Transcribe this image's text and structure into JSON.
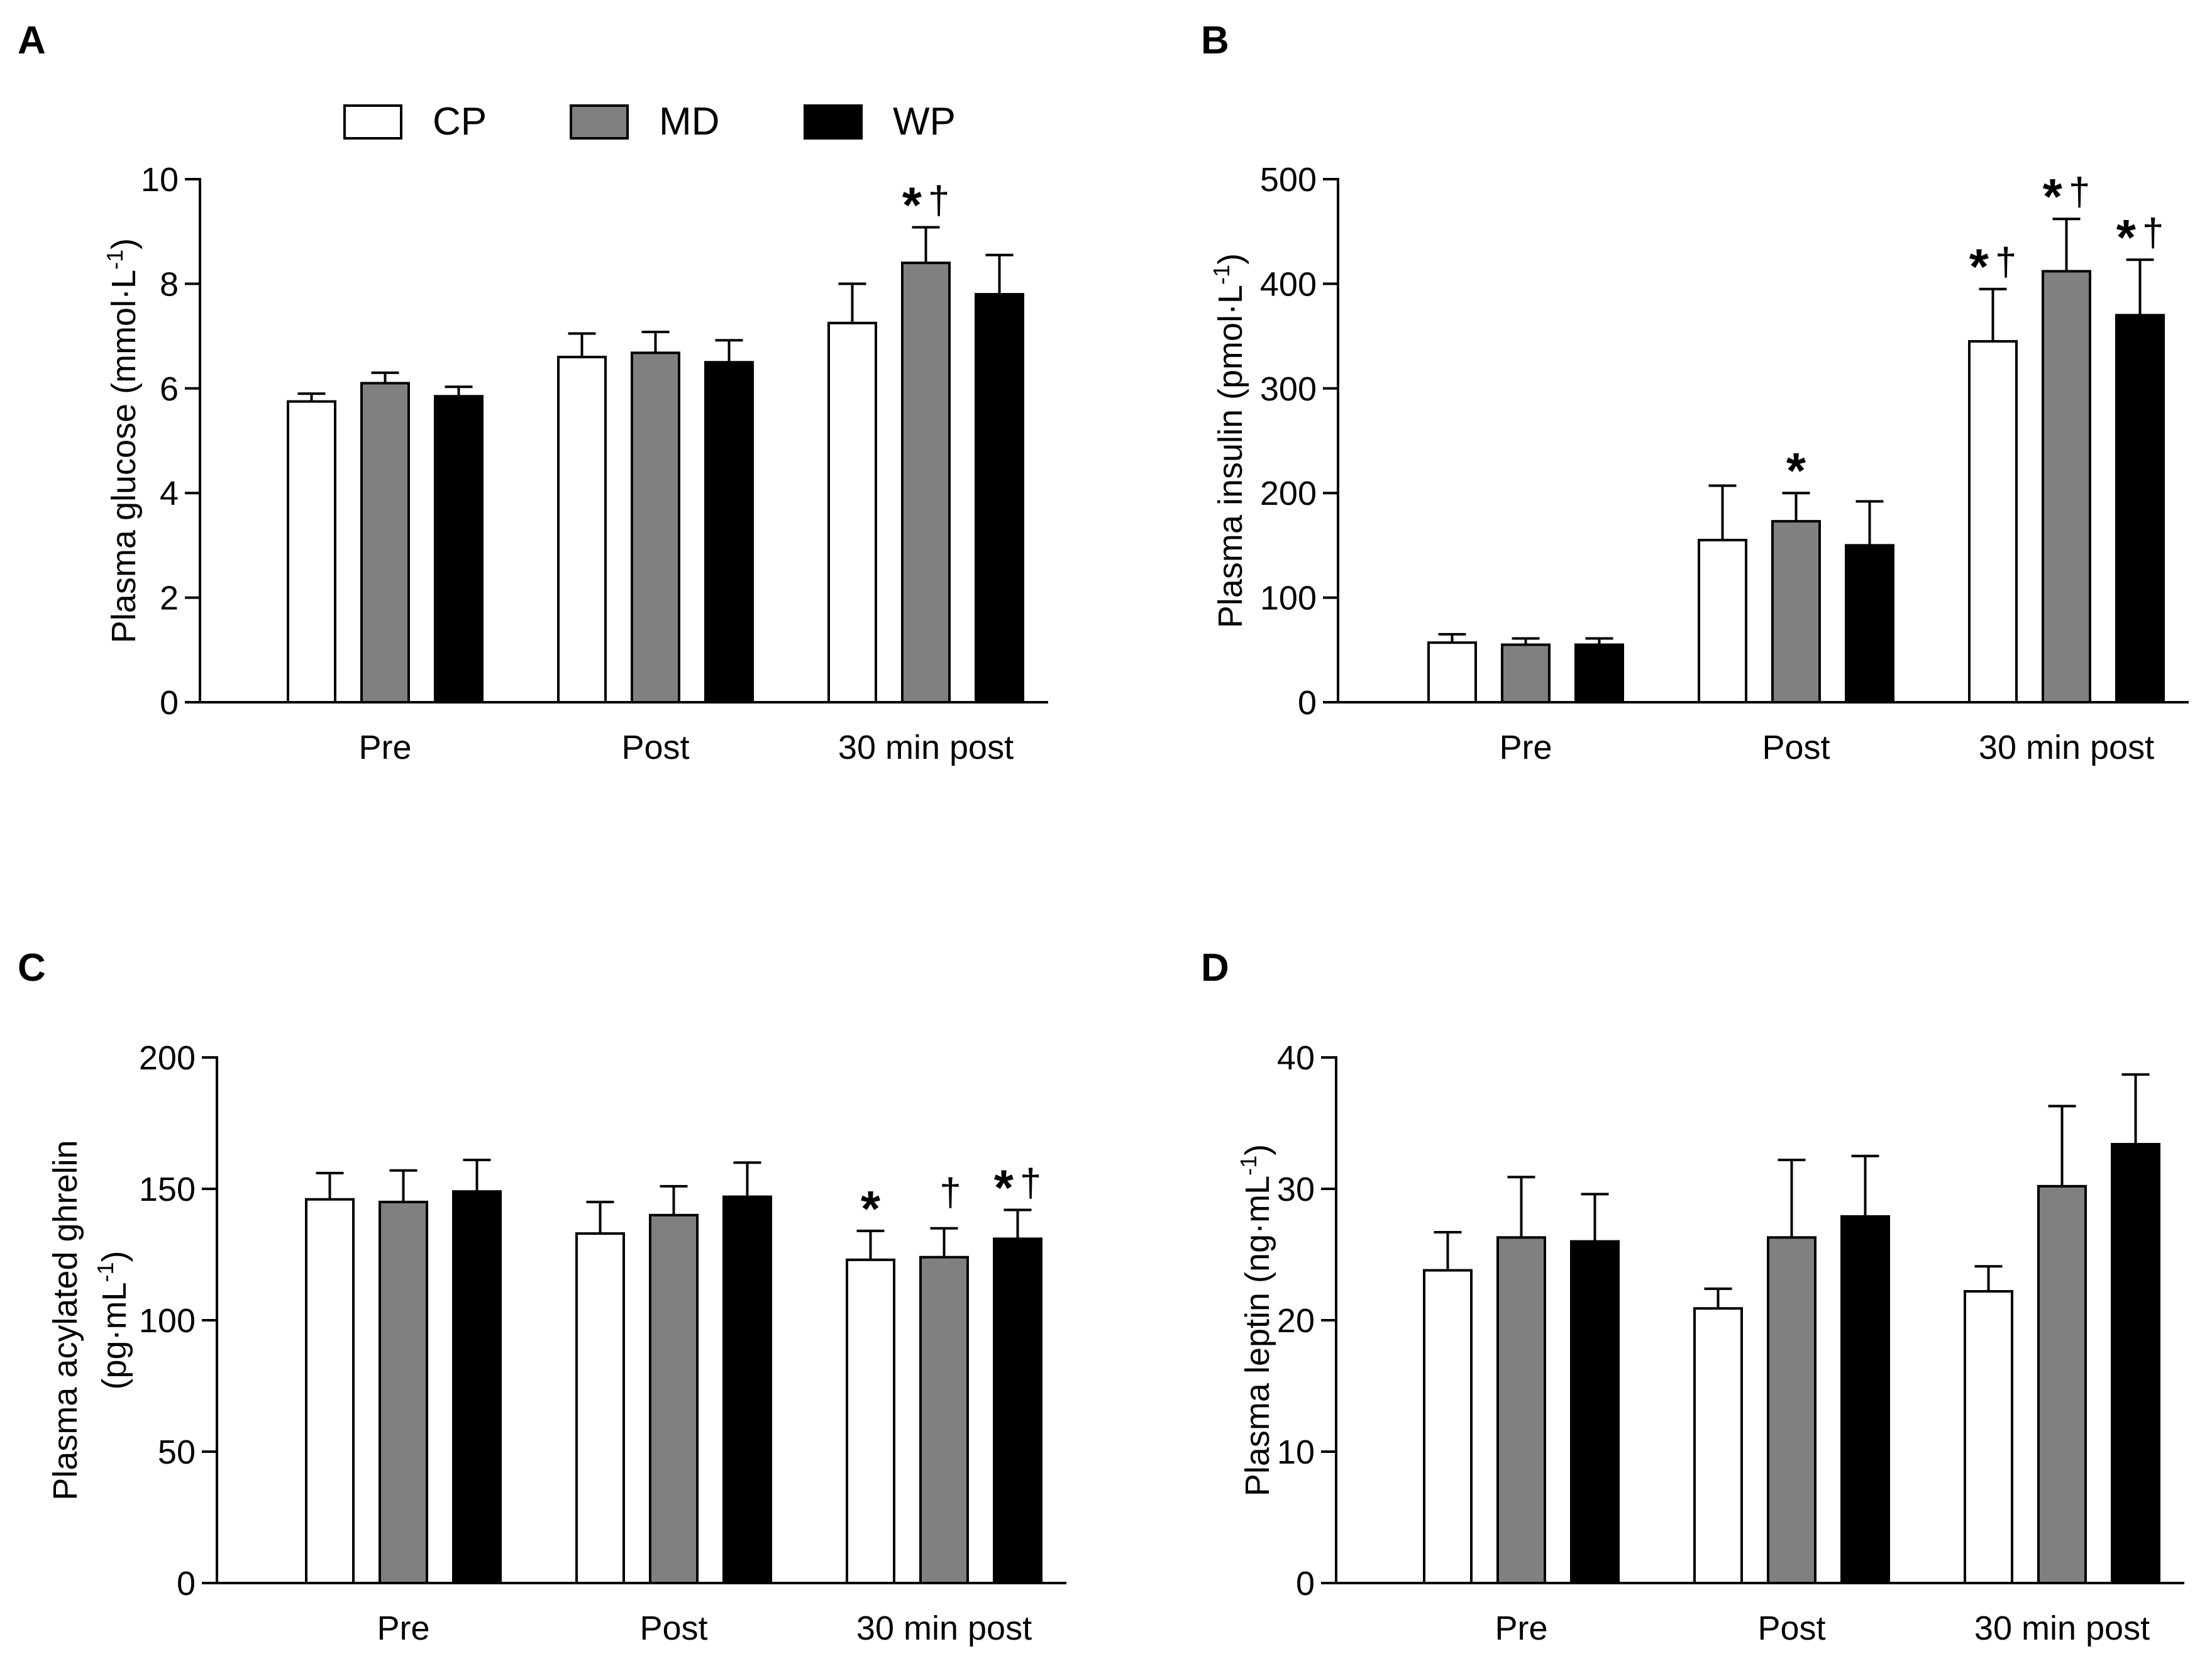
{
  "legend": [
    {
      "label": "CP",
      "color": "#ffffff"
    },
    {
      "label": "MD",
      "color": "#808080"
    },
    {
      "label": "WP",
      "color": "#000000"
    }
  ],
  "chart_data": [
    {
      "panel": "A",
      "type": "bar",
      "ylabel": "Plasma glucose (mmol·L",
      "ylabel_sup": "-1",
      "ylabel_end": ")",
      "ylabel2": "",
      "ylim": [
        0,
        10
      ],
      "yticks": [
        0,
        2,
        4,
        6,
        8,
        10
      ],
      "ytick_labels": [
        "0",
        "2",
        "4",
        "6",
        "8",
        "10"
      ],
      "categories": [
        "Pre",
        "Post",
        "30 min post"
      ],
      "series": [
        {
          "name": "CP",
          "values": [
            5.75,
            6.6,
            7.25
          ],
          "errors": [
            0.15,
            0.45,
            0.75
          ],
          "marks": [
            "",
            "",
            ""
          ]
        },
        {
          "name": "MD",
          "values": [
            6.1,
            6.68,
            8.4
          ],
          "errors": [
            0.2,
            0.4,
            0.68
          ],
          "marks": [
            "",
            "",
            "*†"
          ]
        },
        {
          "name": "WP",
          "values": [
            5.85,
            6.5,
            7.8
          ],
          "errors": [
            0.18,
            0.42,
            0.75
          ],
          "marks": [
            "",
            "",
            ""
          ]
        }
      ]
    },
    {
      "panel": "B",
      "type": "bar",
      "ylabel": "Plasma insulin (pmol·L",
      "ylabel_sup": "-1",
      "ylabel_end": ")",
      "ylabel2": "",
      "ylim": [
        0,
        500
      ],
      "yticks": [
        0,
        100,
        200,
        300,
        400,
        500
      ],
      "ytick_labels": [
        "0",
        "100",
        "200",
        "300",
        "400",
        "500"
      ],
      "categories": [
        "Pre",
        "Post",
        "30 min post"
      ],
      "series": [
        {
          "name": "CP",
          "values": [
            57,
            155,
            345
          ],
          "errors": [
            8,
            52,
            50
          ],
          "marks": [
            "",
            "",
            "*†"
          ]
        },
        {
          "name": "MD",
          "values": [
            55,
            173,
            412
          ],
          "errors": [
            6,
            27,
            50
          ],
          "marks": [
            "",
            "*",
            "*†"
          ]
        },
        {
          "name": "WP",
          "values": [
            55,
            150,
            370
          ],
          "errors": [
            6,
            42,
            53
          ],
          "marks": [
            "",
            "",
            "*†"
          ]
        }
      ]
    },
    {
      "panel": "C",
      "type": "bar",
      "ylabel": "Plasma acylated ghrelin",
      "ylabel_sup": "",
      "ylabel_end": "",
      "ylabel2": "(pg·mL",
      "ylabel2_sup": "-1",
      "ylabel2_end": ")",
      "ylim": [
        0,
        200
      ],
      "yticks": [
        0,
        50,
        100,
        150,
        200
      ],
      "ytick_labels": [
        "0",
        "50",
        "100",
        "150",
        "200"
      ],
      "categories": [
        "Pre",
        "Post",
        "30 min post"
      ],
      "series": [
        {
          "name": "CP",
          "values": [
            146,
            133,
            123
          ],
          "errors": [
            10,
            12,
            11
          ],
          "marks": [
            "",
            "",
            "*"
          ]
        },
        {
          "name": "MD",
          "values": [
            145,
            140,
            124
          ],
          "errors": [
            12,
            11,
            11
          ],
          "marks": [
            "",
            "",
            "†"
          ]
        },
        {
          "name": "WP",
          "values": [
            149,
            147,
            131
          ],
          "errors": [
            12,
            13,
            11
          ],
          "marks": [
            "",
            "",
            "*†"
          ]
        }
      ]
    },
    {
      "panel": "D",
      "type": "bar",
      "ylabel": "Plasma leptin (ng·mL",
      "ylabel_sup": "-1",
      "ylabel_end": ")",
      "ylabel2": "",
      "ylim": [
        0,
        40
      ],
      "yticks": [
        0,
        10,
        20,
        30,
        40
      ],
      "ytick_labels": [
        "0",
        "10",
        "20",
        "30",
        "40"
      ],
      "categories": [
        "Pre",
        "Post",
        "30 min post"
      ],
      "series": [
        {
          "name": "CP",
          "values": [
            23.8,
            20.9,
            22.2
          ],
          "errors": [
            2.9,
            1.5,
            1.9
          ],
          "marks": [
            "",
            "",
            ""
          ]
        },
        {
          "name": "MD",
          "values": [
            26.3,
            26.3,
            30.2
          ],
          "errors": [
            4.6,
            5.9,
            6.1
          ],
          "marks": [
            "",
            "",
            ""
          ]
        },
        {
          "name": "WP",
          "values": [
            26.0,
            27.9,
            33.4
          ],
          "errors": [
            3.6,
            4.6,
            5.3
          ],
          "marks": [
            "",
            "",
            ""
          ]
        }
      ]
    }
  ]
}
